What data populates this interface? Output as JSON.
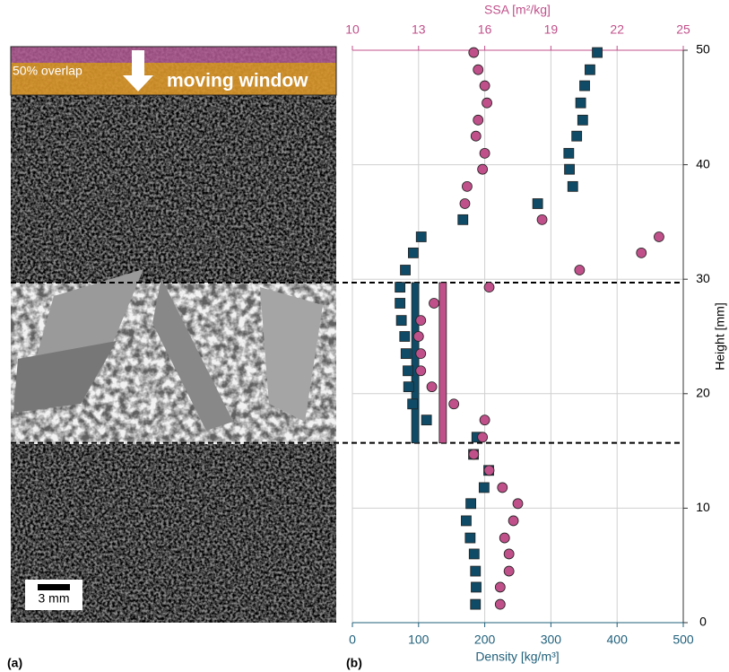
{
  "image_panel": {
    "label": "(a)",
    "overlap_label": "50% overlap",
    "window_label": "moving window",
    "scale_bar": "3 mm"
  },
  "chart_data": {
    "type": "scatter",
    "panel_label": "(b)",
    "xlabel": "Density [kg/m³]",
    "x2label": "SSA [m²/kg]",
    "ylabel": "Height [mm]",
    "xlim": [
      0,
      500
    ],
    "xticks": [
      0,
      100,
      200,
      300,
      400,
      500
    ],
    "x2lim": [
      10,
      25
    ],
    "x2ticks": [
      10,
      13,
      16,
      19,
      22,
      25
    ],
    "ylim": [
      0,
      50
    ],
    "yticks": [
      0,
      10,
      20,
      30,
      40,
      50
    ],
    "grid": true,
    "y": [
      1.6,
      3.1,
      4.5,
      6.0,
      7.4,
      8.9,
      10.4,
      11.8,
      13.3,
      14.7,
      16.2,
      17.7,
      19.1,
      20.6,
      22.0,
      23.5,
      25.0,
      26.4,
      27.9,
      29.3,
      30.8,
      32.3,
      33.7,
      35.2,
      36.6,
      38.1,
      39.6,
      41.0,
      42.5,
      43.9,
      45.4,
      46.9,
      48.3,
      49.8
    ],
    "window": [
      15.7,
      29.7
    ],
    "series": [
      {
        "axis": "x",
        "marker": "square",
        "color": "#0f4b66",
        "mean": 95,
        "x": [
          186,
          187,
          186,
          184,
          178,
          172,
          179,
          199,
          206,
          183,
          188,
          112,
          91,
          85,
          84,
          81,
          79,
          74,
          72,
          72,
          80,
          92,
          104,
          167,
          280,
          333,
          328,
          327,
          339,
          348,
          345,
          351,
          359,
          370
        ]
      },
      {
        "axis": "x2",
        "marker": "circle",
        "color": "#c0508a",
        "mean": 14.1,
        "x": [
          16.7,
          16.7,
          17.1,
          17.1,
          16.9,
          17.3,
          17.5,
          16.8,
          16.2,
          15.5,
          15.9,
          16.0,
          14.6,
          13.6,
          13.1,
          13.1,
          13.0,
          13.1,
          13.7,
          16.2,
          20.3,
          23.1,
          23.9,
          18.6,
          15.1,
          15.2,
          15.9,
          16.0,
          15.6,
          15.7,
          16.1,
          16.0,
          15.7,
          15.5
        ]
      }
    ]
  }
}
